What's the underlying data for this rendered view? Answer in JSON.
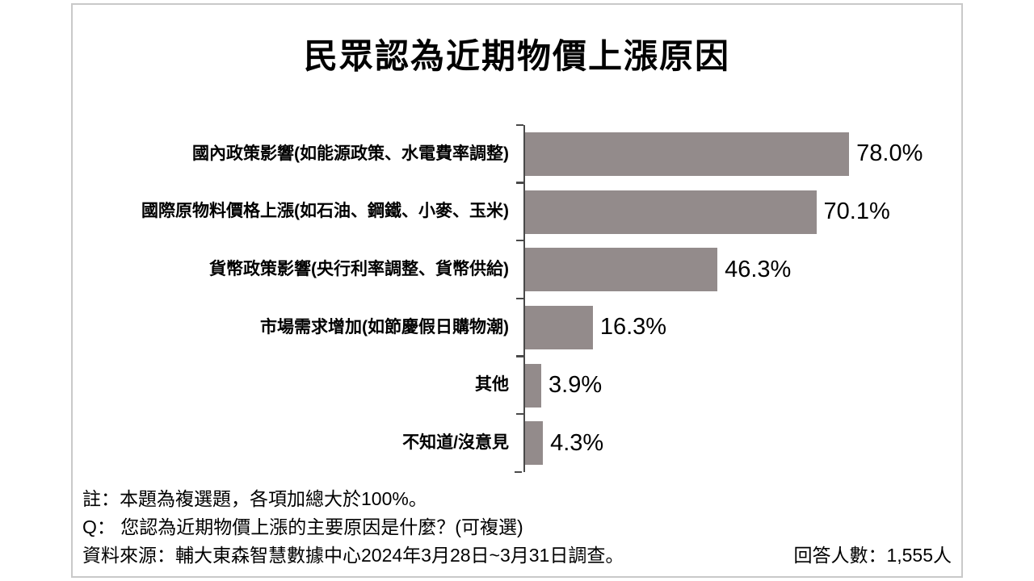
{
  "page": {
    "title": "民眾認為近期物價上漲原因",
    "notes": {
      "note1": "註：本題為複選題，各項加總大於100%。",
      "note2": "Q： 您認為近期物價上漲的主要原因是什麼？(可複選)",
      "source": "資料來源：輔大東森智慧數據中心2024年3月28日~3月31日調查。",
      "respondents": "回答人數：1,555人"
    }
  },
  "chart_data": {
    "type": "bar",
    "orientation": "horizontal",
    "title": "民眾認為近期物價上漲原因",
    "categories": [
      "國內政策影響(如能源政策、水電費率調整)",
      "國際原物料價格上漲(如石油、鋼鐵、小麥、玉米)",
      "貨幣政策影響(央行利率調整、貨幣供給)",
      "市場需求增加(如節慶假日購物潮)",
      "其他",
      "不知道/沒意見"
    ],
    "values": [
      78.0,
      70.1,
      46.3,
      16.3,
      3.9,
      4.3
    ],
    "value_labels": [
      "78.0%",
      "70.1%",
      "46.3%",
      "16.3%",
      "3.9%",
      "4.3%"
    ],
    "xlabel": "",
    "ylabel": "",
    "xlim": [
      0,
      105
    ],
    "grid": false,
    "legend": false,
    "bar_color": "#938b8b",
    "axis_color": "#4a4a4a",
    "unit": "%"
  }
}
